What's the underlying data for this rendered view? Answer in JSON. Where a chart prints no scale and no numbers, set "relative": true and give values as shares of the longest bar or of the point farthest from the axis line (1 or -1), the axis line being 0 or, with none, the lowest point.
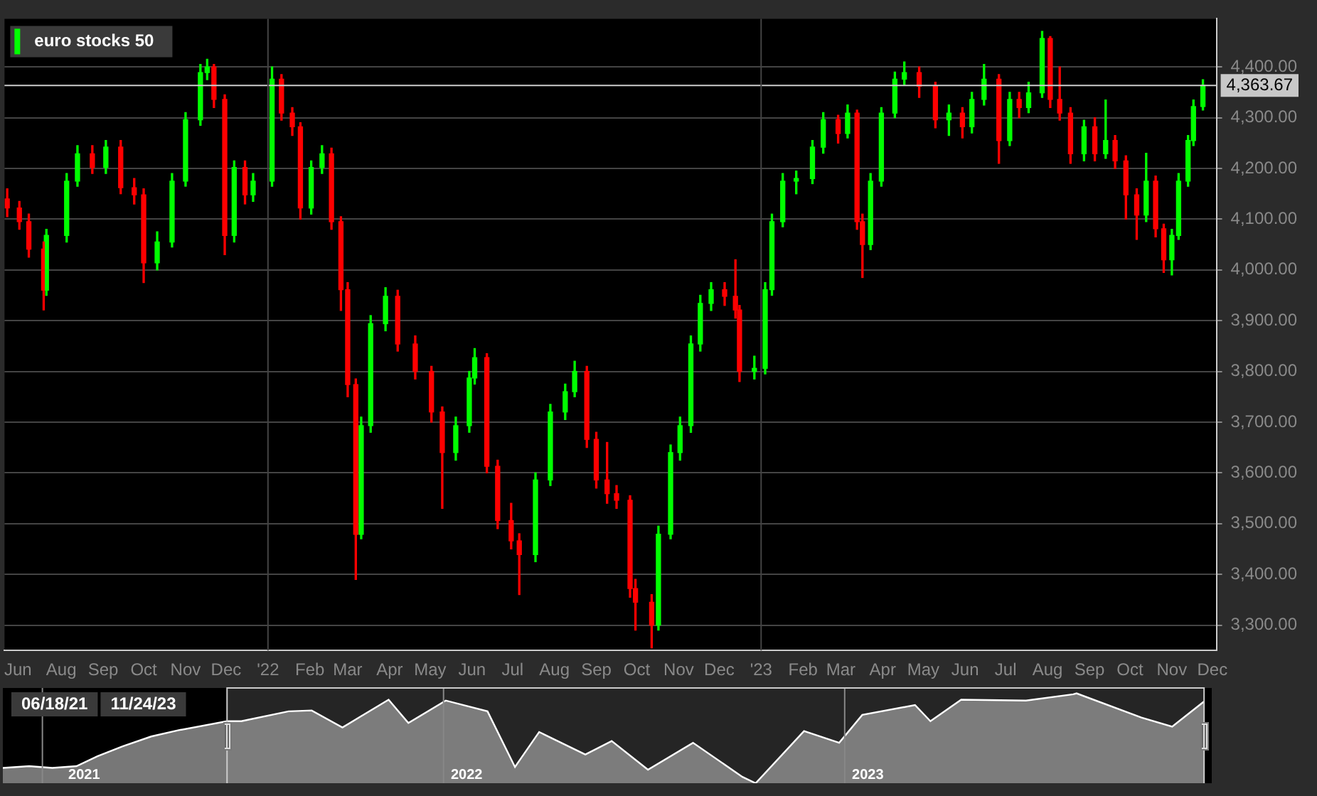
{
  "chart_data": [
    {
      "type": "candlestick",
      "legend": "top left",
      "grid": "y",
      "xlim": [
        "2021-06-20",
        "2023-12-04"
      ],
      "xticks": [
        {
          "value": "2021-06-30",
          "label": "Jun"
        },
        {
          "value": "2021-08-01",
          "label": "Aug"
        },
        {
          "value": "2021-09-01",
          "label": "Sep"
        },
        {
          "value": "2021-10-01",
          "label": "Oct"
        },
        {
          "value": "2021-11-01",
          "label": "Nov"
        },
        {
          "value": "2021-12-01",
          "label": "Dec"
        },
        {
          "value": "2022-01-01",
          "label": "'22"
        },
        {
          "value": "2022-02-01",
          "label": "Feb"
        },
        {
          "value": "2022-03-01",
          "label": "Mar"
        },
        {
          "value": "2022-04-01",
          "label": "Apr"
        },
        {
          "value": "2022-05-01",
          "label": "May"
        },
        {
          "value": "2022-06-01",
          "label": "Jun"
        },
        {
          "value": "2022-07-01",
          "label": "Jul"
        },
        {
          "value": "2022-08-01",
          "label": "Aug"
        },
        {
          "value": "2022-09-01",
          "label": "Sep"
        },
        {
          "value": "2022-10-01",
          "label": "Oct"
        },
        {
          "value": "2022-11-01",
          "label": "Nov"
        },
        {
          "value": "2022-12-01",
          "label": "Dec"
        },
        {
          "value": "2023-01-01",
          "label": "'23"
        },
        {
          "value": "2023-02-01",
          "label": "Feb"
        },
        {
          "value": "2023-03-01",
          "label": "Mar"
        },
        {
          "value": "2023-04-01",
          "label": "Apr"
        },
        {
          "value": "2023-05-01",
          "label": "May"
        },
        {
          "value": "2023-06-01",
          "label": "Jun"
        },
        {
          "value": "2023-07-01",
          "label": "Jul"
        },
        {
          "value": "2023-08-01",
          "label": "Aug"
        },
        {
          "value": "2023-09-01",
          "label": "Sep"
        },
        {
          "value": "2023-10-01",
          "label": "Oct"
        },
        {
          "value": "2023-11-01",
          "label": "Nov"
        },
        {
          "value": "2023-12-01",
          "label": "Dec"
        }
      ],
      "ylim": [
        3250,
        4495
      ],
      "yticks": [
        {
          "value": 3300,
          "label": "3,300.00"
        },
        {
          "value": 3400,
          "label": "3,400.00"
        },
        {
          "value": 3500,
          "label": "3,500.00"
        },
        {
          "value": 3600,
          "label": "3,600.00"
        },
        {
          "value": 3700,
          "label": "3,700.00"
        },
        {
          "value": 3800,
          "label": "3,800.00"
        },
        {
          "value": 3900,
          "label": "3,900.00"
        },
        {
          "value": 4000,
          "label": "4,000.00"
        },
        {
          "value": 4100,
          "label": "4,100.00"
        },
        {
          "value": 4200,
          "label": "4,200.00"
        },
        {
          "value": 4300,
          "label": "4,300.00"
        },
        {
          "value": 4400,
          "label": "4,400.00"
        }
      ],
      "ref_lines": [
        {
          "axis": "y",
          "value": 4363.67,
          "label": "4,363.67",
          "color": "#cccccc"
        },
        {
          "axis": "x",
          "value": "2022-01-01",
          "color": "#444444"
        },
        {
          "axis": "x",
          "value": "2023-01-01",
          "color": "#444444"
        }
      ],
      "series": [
        {
          "name": "euro stocks 50",
          "color": "#00ff00",
          "colors": [
            "#ff0000",
            "#ff0000",
            "#ff0000",
            "#ff0000",
            "#00ff00",
            "#00ff00",
            "#00ff00",
            "#ff0000",
            "#00ff00",
            "#ff0000",
            "#ff0000",
            "#ff0000",
            "#00ff00",
            "#00ff00",
            "#00ff00",
            "#00ff00",
            "#00ff00",
            "#ff0000",
            "#ff0000",
            "#00ff00",
            "#ff0000",
            "#00ff00",
            "#00ff00",
            "#ff0000",
            "#ff0000",
            "#ff0000",
            "#00ff00",
            "#00ff00",
            "#ff0000",
            "#ff0000",
            "#ff0000",
            "#ff0000",
            "#00ff00",
            "#00ff00",
            "#00ff00",
            "#ff0000",
            "#ff0000",
            "#ff0000",
            "#ff0000",
            "#00ff00",
            "#00ff00",
            "#00ff00",
            "#ff0000",
            "#ff0000",
            "#ff0000",
            "#ff0000",
            "#00ff00",
            "#00ff00",
            "#00ff00",
            "#00ff00",
            "#ff0000",
            "#ff0000",
            "#ff0000",
            "#ff0000",
            "#ff0000",
            "#ff0000",
            "#ff0000",
            "#00ff00",
            "#00ff00",
            "#00ff00",
            "#00ff00",
            "#00ff00",
            "#00ff00",
            "#ff0000",
            "#ff0000",
            "#ff0000",
            "#00ff00",
            "#00ff00",
            "#00ff00",
            "#00ff00",
            "#00ff00",
            "#00ff00",
            "#00ff00",
            "#ff0000",
            "#00ff00",
            "#ff0000",
            "#ff0000",
            "#00ff00",
            "#00ff00",
            "#00ff00",
            "#00ff00",
            "#ff0000",
            "#ff0000",
            "#00ff00",
            "#ff0000",
            "#00ff00",
            "#00ff00",
            "#ff0000",
            "#00ff00",
            "#ff0000",
            "#00ff00",
            "#00ff00",
            "#ff0000",
            "#ff0000",
            "#ff0000",
            "#00ff00",
            "#ff0000",
            "#00ff00",
            "#ff0000",
            "#ff0000",
            "#ff0000",
            "#00ff00",
            "#ff0000",
            "#ff0000",
            "#00ff00",
            "#00ff00",
            "#00ff00",
            "#00ff00",
            "#00ff00"
          ],
          "x": [
            "2021-06-22",
            "2021-07-01",
            "2021-07-08",
            "2021-07-19",
            "2021-07-21",
            "2021-08-05",
            "2021-08-13",
            "2021-08-24",
            "2021-09-03",
            "2021-09-14",
            "2021-09-24",
            "2021-10-01",
            "2021-10-11",
            "2021-10-22",
            "2021-11-01",
            "2021-11-12",
            "2021-11-17",
            "2021-11-22",
            "2021-11-30",
            "2021-12-07",
            "2021-12-15",
            "2021-12-21",
            "2022-01-04",
            "2022-01-11",
            "2022-01-19",
            "2022-01-25",
            "2022-02-02",
            "2022-02-10",
            "2022-02-17",
            "2022-02-24",
            "2022-03-01",
            "2022-03-07",
            "2022-03-11",
            "2022-03-18",
            "2022-03-29",
            "2022-04-07",
            "2022-04-20",
            "2022-05-02",
            "2022-05-10",
            "2022-05-20",
            "2022-05-30",
            "2022-06-03",
            "2022-06-12",
            "2022-06-20",
            "2022-06-30",
            "2022-07-06",
            "2022-07-18",
            "2022-07-29",
            "2022-08-09",
            "2022-08-16",
            "2022-08-25",
            "2022-09-01",
            "2022-09-09",
            "2022-09-16",
            "2022-09-26",
            "2022-09-30",
            "2022-10-12",
            "2022-10-17",
            "2022-10-26",
            "2022-11-02",
            "2022-11-10",
            "2022-11-17",
            "2022-11-25",
            "2022-12-05",
            "2022-12-13",
            "2022-12-16",
            "2022-12-27",
            "2023-01-04",
            "2023-01-09",
            "2023-01-17",
            "2023-01-27",
            "2023-02-08",
            "2023-02-16",
            "2023-02-27",
            "2023-03-06",
            "2023-03-13",
            "2023-03-17",
            "2023-03-23",
            "2023-03-31",
            "2023-04-10",
            "2023-04-17",
            "2023-04-28",
            "2023-05-10",
            "2023-05-20",
            "2023-05-30",
            "2023-06-06",
            "2023-06-15",
            "2023-06-26",
            "2023-07-04",
            "2023-07-11",
            "2023-07-18",
            "2023-07-28",
            "2023-08-03",
            "2023-08-10",
            "2023-08-18",
            "2023-08-28",
            "2023-09-05",
            "2023-09-13",
            "2023-09-20",
            "2023-09-28",
            "2023-10-06",
            "2023-10-13",
            "2023-10-20",
            "2023-10-26",
            "2023-11-01",
            "2023-11-06",
            "2023-11-13",
            "2023-11-17",
            "2023-11-24"
          ],
          "ohlc": [
            [
              4140,
              4160,
              4105,
              4122
            ],
            [
              4122,
              4135,
              4080,
              4095
            ],
            [
              4095,
              4110,
              4025,
              4041
            ],
            [
              4041,
              4055,
              3921,
              3960
            ],
            [
              3960,
              4080,
              3950,
              4068
            ],
            [
              4068,
              4190,
              4055,
              4175
            ],
            [
              4175,
              4245,
              4165,
              4229
            ],
            [
              4229,
              4245,
              4190,
              4202
            ],
            [
              4202,
              4255,
              4190,
              4242
            ],
            [
              4242,
              4255,
              4150,
              4162
            ],
            [
              4162,
              4180,
              4130,
              4148
            ],
            [
              4148,
              4160,
              3975,
              4014
            ],
            [
              4014,
              4075,
              4000,
              4055
            ],
            [
              4055,
              4190,
              4045,
              4175
            ],
            [
              4175,
              4310,
              4165,
              4296
            ],
            [
              4296,
              4405,
              4285,
              4389
            ],
            [
              4389,
              4415,
              4375,
              4400
            ],
            [
              4400,
              4405,
              4320,
              4336
            ],
            [
              4336,
              4345,
              4030,
              4068
            ],
            [
              4068,
              4215,
              4055,
              4202
            ],
            [
              4202,
              4215,
              4130,
              4148
            ],
            [
              4148,
              4190,
              4135,
              4175
            ],
            [
              4175,
              4400,
              4165,
              4376
            ],
            [
              4376,
              4385,
              4295,
              4309
            ],
            [
              4309,
              4320,
              4265,
              4282
            ],
            [
              4282,
              4290,
              4100,
              4122
            ],
            [
              4122,
              4215,
              4110,
              4202
            ],
            [
              4202,
              4245,
              4190,
              4229
            ],
            [
              4229,
              4240,
              4080,
              4095
            ],
            [
              4095,
              4105,
              3920,
              3961
            ],
            [
              3961,
              3975,
              3750,
              3774
            ],
            [
              3774,
              3785,
              3390,
              3479
            ],
            [
              3479,
              3710,
              3470,
              3693
            ],
            [
              3693,
              3910,
              3680,
              3894
            ],
            [
              3894,
              3965,
              3880,
              3948
            ],
            [
              3948,
              3960,
              3840,
              3854
            ],
            [
              3854,
              3870,
              3785,
              3800
            ],
            [
              3800,
              3810,
              3700,
              3720
            ],
            [
              3720,
              3730,
              3530,
              3640
            ],
            [
              3640,
              3710,
              3625,
              3693
            ],
            [
              3693,
              3800,
              3680,
              3787
            ],
            [
              3787,
              3845,
              3775,
              3827
            ],
            [
              3827,
              3835,
              3600,
              3613
            ],
            [
              3613,
              3625,
              3490,
              3506
            ],
            [
              3506,
              3540,
              3450,
              3466
            ],
            [
              3466,
              3480,
              3360,
              3439
            ],
            [
              3439,
              3600,
              3425,
              3586
            ],
            [
              3586,
              3735,
              3575,
              3720
            ],
            [
              3720,
              3775,
              3705,
              3760
            ],
            [
              3760,
              3820,
              3750,
              3800
            ],
            [
              3800,
              3810,
              3650,
              3666
            ],
            [
              3666,
              3680,
              3570,
              3586
            ],
            [
              3586,
              3660,
              3540,
              3559
            ],
            [
              3559,
              3575,
              3530,
              3546
            ],
            [
              3546,
              3555,
              3355,
              3372
            ],
            [
              3372,
              3390,
              3290,
              3345
            ],
            [
              3345,
              3360,
              3255,
              3300
            ],
            [
              3300,
              3495,
              3290,
              3479
            ],
            [
              3479,
              3655,
              3470,
              3640
            ],
            [
              3640,
              3710,
              3625,
              3693
            ],
            [
              3693,
              3870,
              3680,
              3854
            ],
            [
              3854,
              3950,
              3840,
              3934
            ],
            [
              3934,
              3975,
              3920,
              3961
            ],
            [
              3961,
              3975,
              3930,
              3948
            ],
            [
              3948,
              4020,
              3905,
              3921
            ],
            [
              3921,
              3930,
              3780,
              3800
            ],
            [
              3800,
              3830,
              3785,
              3806
            ],
            [
              3806,
              3975,
              3795,
              3961
            ],
            [
              3961,
              4110,
              3950,
              4095
            ],
            [
              4095,
              4190,
              4085,
              4175
            ],
            [
              4175,
              4195,
              4150,
              4180
            ],
            [
              4180,
              4255,
              4170,
              4242
            ],
            [
              4242,
              4310,
              4230,
              4296
            ],
            [
              4296,
              4305,
              4250,
              4269
            ],
            [
              4269,
              4325,
              4260,
              4309
            ],
            [
              4309,
              4315,
              4080,
              4095
            ],
            [
              4095,
              4110,
              3985,
              4050
            ],
            [
              4050,
              4190,
              4040,
              4175
            ],
            [
              4175,
              4320,
              4165,
              4309
            ],
            [
              4309,
              4390,
              4300,
              4376
            ],
            [
              4376,
              4410,
              4365,
              4389
            ],
            [
              4389,
              4400,
              4340,
              4362
            ],
            [
              4362,
              4370,
              4280,
              4296
            ],
            [
              4296,
              4325,
              4265,
              4309
            ],
            [
              4309,
              4320,
              4260,
              4282
            ],
            [
              4282,
              4350,
              4270,
              4336
            ],
            [
              4336,
              4405,
              4325,
              4376
            ],
            [
              4376,
              4385,
              4210,
              4255
            ],
            [
              4255,
              4350,
              4245,
              4336
            ],
            [
              4336,
              4350,
              4300,
              4320
            ],
            [
              4320,
              4370,
              4310,
              4349
            ],
            [
              4349,
              4470,
              4340,
              4456
            ],
            [
              4456,
              4460,
              4320,
              4336
            ],
            [
              4336,
              4400,
              4295,
              4309
            ],
            [
              4309,
              4320,
              4210,
              4229
            ],
            [
              4229,
              4295,
              4215,
              4282
            ],
            [
              4282,
              4300,
              4215,
              4229
            ],
            [
              4229,
              4335,
              4220,
              4255
            ],
            [
              4255,
              4265,
              4200,
              4215
            ],
            [
              4215,
              4225,
              4100,
              4148
            ],
            [
              4148,
              4160,
              4060,
              4108
            ],
            [
              4108,
              4230,
              4095,
              4175
            ],
            [
              4175,
              4185,
              4065,
              4081
            ],
            [
              4081,
              4090,
              3995,
              4020
            ],
            [
              4020,
              4080,
              3990,
              4068
            ],
            [
              4068,
              4190,
              4060,
              4175
            ],
            [
              4175,
              4265,
              4165,
              4255
            ],
            [
              4255,
              4335,
              4245,
              4322
            ],
            [
              4322,
              4375,
              4315,
              4363.67
            ]
          ]
        }
      ]
    },
    {
      "type": "area",
      "relative": true,
      "color": "#ffffff",
      "xlim": [
        "2020-11-26",
        "2023-12-01"
      ],
      "xticks": [
        {
          "value": "2021-02-08",
          "label": "2021"
        },
        {
          "value": "2022-01-22",
          "label": "2022"
        },
        {
          "value": "2023-01-22",
          "label": "2023"
        }
      ],
      "ref_lines": [
        {
          "axis": "x",
          "value": "2021-01-01",
          "color": "#888888"
        },
        {
          "axis": "x",
          "value": "2022-01-01",
          "color": "#888888"
        },
        {
          "axis": "x",
          "value": "2023-01-01",
          "color": "#888888"
        }
      ],
      "bands": [
        {
          "axis": "x",
          "from": "2021-06-18",
          "to": "2023-11-24",
          "color": "#cccccc"
        }
      ],
      "annotations": [
        "06/18/21",
        "11/24/23"
      ],
      "x": [
        "2020-11-26",
        "2020-12-20",
        "2021-01-10",
        "2021-02-01",
        "2021-02-20",
        "2021-03-15",
        "2021-04-10",
        "2021-05-05",
        "2021-06-18",
        "2021-07-01",
        "2021-08-13",
        "2021-09-03",
        "2021-10-01",
        "2021-11-12",
        "2021-11-30",
        "2022-01-03",
        "2022-02-10",
        "2022-03-07",
        "2022-03-29",
        "2022-05-10",
        "2022-06-03",
        "2022-07-06",
        "2022-08-16",
        "2022-09-30",
        "2022-10-12",
        "2022-11-25",
        "2022-12-27",
        "2023-01-17",
        "2023-03-06",
        "2023-03-20",
        "2023-04-17",
        "2023-06-15",
        "2023-07-28",
        "2023-07-31",
        "2023-09-28",
        "2023-10-26",
        "2023-11-24"
      ],
      "values": [
        0.17,
        0.19,
        0.17,
        0.19,
        0.3,
        0.41,
        0.52,
        0.59,
        0.69,
        0.69,
        0.8,
        0.81,
        0.62,
        0.93,
        0.67,
        0.92,
        0.8,
        0.18,
        0.57,
        0.32,
        0.47,
        0.15,
        0.45,
        0.07,
        0,
        0.58,
        0.45,
        0.76,
        0.87,
        0.69,
        0.93,
        0.92,
        0.99,
        1,
        0.73,
        0.63,
        0.91
      ]
    }
  ]
}
